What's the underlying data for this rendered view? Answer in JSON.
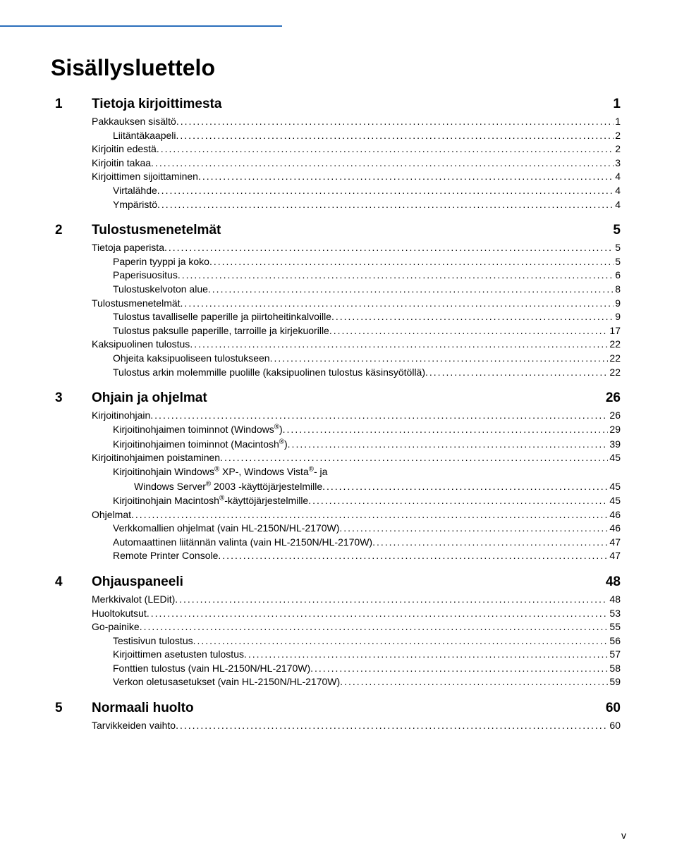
{
  "title": "Sisällysluettelo",
  "page_number": "v",
  "colors": {
    "rule": "#2a6ebb",
    "text": "#000000",
    "bg": "#ffffff"
  },
  "typography": {
    "title_fontsize": 32,
    "chapter_fontsize": 19,
    "entry_fontsize": 14,
    "font_family": "Arial"
  },
  "chapters": [
    {
      "num": "1",
      "title": "Tietoja kirjoittimesta",
      "page": "1",
      "entries": [
        {
          "level": 0,
          "label": "Pakkauksen sisältö",
          "page": "1"
        },
        {
          "level": 1,
          "label": "Liitäntäkaapeli",
          "page": "2"
        },
        {
          "level": 0,
          "label": "Kirjoitin edestä",
          "page": "2"
        },
        {
          "level": 0,
          "label": "Kirjoitin takaa",
          "page": "3"
        },
        {
          "level": 0,
          "label": "Kirjoittimen sijoittaminen",
          "page": "4"
        },
        {
          "level": 1,
          "label": "Virtalähde",
          "page": "4"
        },
        {
          "level": 1,
          "label": "Ympäristö",
          "page": "4"
        }
      ]
    },
    {
      "num": "2",
      "title": "Tulostusmenetelmät",
      "page": "5",
      "entries": [
        {
          "level": 0,
          "label": "Tietoja paperista",
          "page": "5"
        },
        {
          "level": 1,
          "label": "Paperin tyyppi ja koko",
          "page": "5"
        },
        {
          "level": 1,
          "label": "Paperisuositus",
          "page": "6"
        },
        {
          "level": 1,
          "label": "Tulostuskelvoton alue",
          "page": "8"
        },
        {
          "level": 0,
          "label": "Tulostusmenetelmät",
          "page": "9"
        },
        {
          "level": 1,
          "label": "Tulostus tavalliselle paperille ja piirtoheitinkalvoille",
          "page": "9"
        },
        {
          "level": 1,
          "label": "Tulostus paksulle paperille, tarroille ja kirjekuorille",
          "page": "17"
        },
        {
          "level": 0,
          "label": "Kaksipuolinen tulostus",
          "page": "22"
        },
        {
          "level": 1,
          "label": "Ohjeita kaksipuoliseen tulostukseen",
          "page": "22"
        },
        {
          "level": 1,
          "label": "Tulostus arkin molemmille puolille (kaksipuolinen tulostus käsinsyötöllä)",
          "page": "22"
        }
      ]
    },
    {
      "num": "3",
      "title": "Ohjain ja ohjelmat",
      "page": "26",
      "entries": [
        {
          "level": 0,
          "label": "Kirjoitinohjain",
          "page": "26"
        },
        {
          "level": 1,
          "label": "Kirjoitinohjaimen toiminnot (Windows®)",
          "page": "29",
          "reg_after": "Windows"
        },
        {
          "level": 1,
          "label": "Kirjoitinohjaimen toiminnot (Macintosh®)",
          "page": "39",
          "reg_after": "Macintosh"
        },
        {
          "level": 0,
          "label": "Kirjoitinohjaimen poistaminen",
          "page": "45"
        },
        {
          "level": 1,
          "label": "Kirjoitinohjain Windows® XP-, Windows Vista®- ja",
          "nodots": true,
          "reg_after": "Windows"
        },
        {
          "level": 2,
          "label": "Windows Server® 2003 -käyttöjärjestelmille",
          "page": "45",
          "reg_after": "Server"
        },
        {
          "level": 1,
          "label": "Kirjoitinohjain Macintosh®-käyttöjärjestelmille",
          "page": "45",
          "reg_after": "Macintosh"
        },
        {
          "level": 0,
          "label": "Ohjelmat",
          "page": "46"
        },
        {
          "level": 1,
          "label": "Verkkomallien ohjelmat (vain HL-2150N/HL-2170W)",
          "page": "46"
        },
        {
          "level": 1,
          "label": "Automaattinen liitännän valinta (vain HL-2150N/HL-2170W)",
          "page": "47"
        },
        {
          "level": 1,
          "label": "Remote Printer Console",
          "page": "47"
        }
      ]
    },
    {
      "num": "4",
      "title": "Ohjauspaneeli",
      "page": "48",
      "entries": [
        {
          "level": 0,
          "label": "Merkkivalot (LEDit)",
          "page": "48"
        },
        {
          "level": 0,
          "label": "Huoltokutsut",
          "page": "53"
        },
        {
          "level": 0,
          "label": "Go-painike",
          "page": "55"
        },
        {
          "level": 1,
          "label": "Testisivun tulostus",
          "page": "56"
        },
        {
          "level": 1,
          "label": "Kirjoittimen asetusten tulostus",
          "page": "57"
        },
        {
          "level": 1,
          "label": "Fonttien tulostus (vain HL-2150N/HL-2170W)",
          "page": "58"
        },
        {
          "level": 1,
          "label": "Verkon oletusasetukset (vain HL-2150N/HL-2170W)",
          "page": "59"
        }
      ]
    },
    {
      "num": "5",
      "title": "Normaali huolto",
      "page": "60",
      "entries": [
        {
          "level": 0,
          "label": "Tarvikkeiden vaihto",
          "page": "60"
        }
      ]
    }
  ]
}
